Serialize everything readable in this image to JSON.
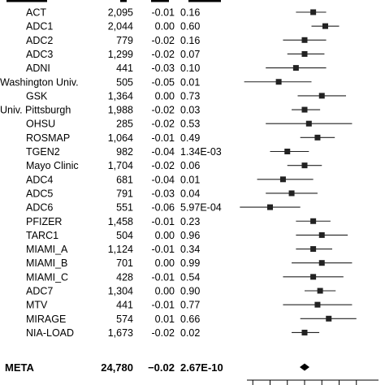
{
  "chart_data": {
    "type": "forest",
    "rows": [
      {
        "cohort": "ACT",
        "n": "2,095",
        "beta": "-0.01",
        "p": "0.16",
        "est": -0.01,
        "lo": -0.03,
        "hi": 0.005
      },
      {
        "cohort": "ADC1",
        "n": "2,044",
        "beta": "0.00",
        "p": "0.60",
        "est": 0.004,
        "lo": -0.012,
        "hi": 0.02
      },
      {
        "cohort": "ADC2",
        "n": "779",
        "beta": "-0.02",
        "p": "0.16",
        "est": -0.02,
        "lo": -0.045,
        "hi": 0.005
      },
      {
        "cohort": "ADC3",
        "n": "1,299",
        "beta": "-0.02",
        "p": "0.07",
        "est": -0.02,
        "lo": -0.04,
        "hi": 0.003
      },
      {
        "cohort": "ADNI",
        "n": "441",
        "beta": "-0.03",
        "p": "0.10",
        "est": -0.03,
        "lo": -0.065,
        "hi": 0.005
      },
      {
        "cohort": "Washington Univ.",
        "n": "505",
        "beta": "-0.05",
        "p": "0.01",
        "est": -0.05,
        "lo": -0.09,
        "hi": -0.012
      },
      {
        "cohort": "GSK",
        "n": "1,364",
        "beta": "0.00",
        "p": "0.73",
        "est": 0.0,
        "lo": -0.028,
        "hi": 0.028
      },
      {
        "cohort": "Univ. Pittsburgh",
        "n": "1,988",
        "beta": "-0.02",
        "p": "0.03",
        "est": -0.02,
        "lo": -0.035,
        "hi": -0.002
      },
      {
        "cohort": "OHSU",
        "n": "285",
        "beta": "-0.02",
        "p": "0.53",
        "est": -0.015,
        "lo": -0.065,
        "hi": 0.035
      },
      {
        "cohort": "ROSMAP",
        "n": "1,064",
        "beta": "-0.01",
        "p": "0.49",
        "est": -0.005,
        "lo": -0.025,
        "hi": 0.015
      },
      {
        "cohort": "TGEN2",
        "n": "982",
        "beta": "-0.04",
        "p": "1.34E-03",
        "est": -0.04,
        "lo": -0.06,
        "hi": -0.015
      },
      {
        "cohort": "Mayo Clinic",
        "n": "1,704",
        "beta": "-0.02",
        "p": "0.06",
        "est": -0.02,
        "lo": -0.04,
        "hi": 0.0
      },
      {
        "cohort": "ADC4",
        "n": "681",
        "beta": "-0.04",
        "p": "0.01",
        "est": -0.045,
        "lo": -0.075,
        "hi": -0.01
      },
      {
        "cohort": "ADC5",
        "n": "791",
        "beta": "-0.03",
        "p": "0.04",
        "est": -0.035,
        "lo": -0.065,
        "hi": -0.005
      },
      {
        "cohort": "ADC6",
        "n": "551",
        "beta": "-0.06",
        "p": "5.97E-04",
        "est": -0.06,
        "lo": -0.095,
        "hi": -0.025
      },
      {
        "cohort": "PFIZER",
        "n": "1,458",
        "beta": "-0.01",
        "p": "0.23",
        "est": -0.01,
        "lo": -0.03,
        "hi": 0.01
      },
      {
        "cohort": "TARC1",
        "n": "504",
        "beta": "0.00",
        "p": "0.96",
        "est": 0.0,
        "lo": -0.03,
        "hi": 0.03
      },
      {
        "cohort": "MIAMI_A",
        "n": "1,124",
        "beta": "-0.01",
        "p": "0.34",
        "est": -0.01,
        "lo": -0.03,
        "hi": 0.012
      },
      {
        "cohort": "MIAMI_B",
        "n": "701",
        "beta": "0.00",
        "p": "0.99",
        "est": 0.0,
        "lo": -0.035,
        "hi": 0.035
      },
      {
        "cohort": "MIAMI_C",
        "n": "428",
        "beta": "-0.01",
        "p": "0.54",
        "est": -0.01,
        "lo": -0.045,
        "hi": 0.025
      },
      {
        "cohort": "ADC7",
        "n": "1,304",
        "beta": "0.00",
        "p": "0.90",
        "est": -0.002,
        "lo": -0.02,
        "hi": 0.016
      },
      {
        "cohort": "MTV",
        "n": "441",
        "beta": "-0.01",
        "p": "0.77",
        "est": -0.005,
        "lo": -0.045,
        "hi": 0.035
      },
      {
        "cohort": "MIRAGE",
        "n": "574",
        "beta": "0.01",
        "p": "0.66",
        "est": 0.008,
        "lo": -0.025,
        "hi": 0.04
      },
      {
        "cohort": "NIA-LOAD",
        "n": "1,673",
        "beta": "-0.02",
        "p": "0.02",
        "est": -0.02,
        "lo": -0.035,
        "hi": -0.003
      }
    ],
    "meta": {
      "cohort": "META",
      "n": "24,780",
      "beta": "−0.02",
      "p": "2.67E-10",
      "est": -0.02
    },
    "xlim": [
      -0.1,
      0.06
    ],
    "axis_ticks": [
      -0.08,
      -0.06,
      -0.04,
      -0.02,
      0.0,
      0.02,
      0.04
    ],
    "marker_color": "#222222",
    "line_color": "#222222"
  }
}
